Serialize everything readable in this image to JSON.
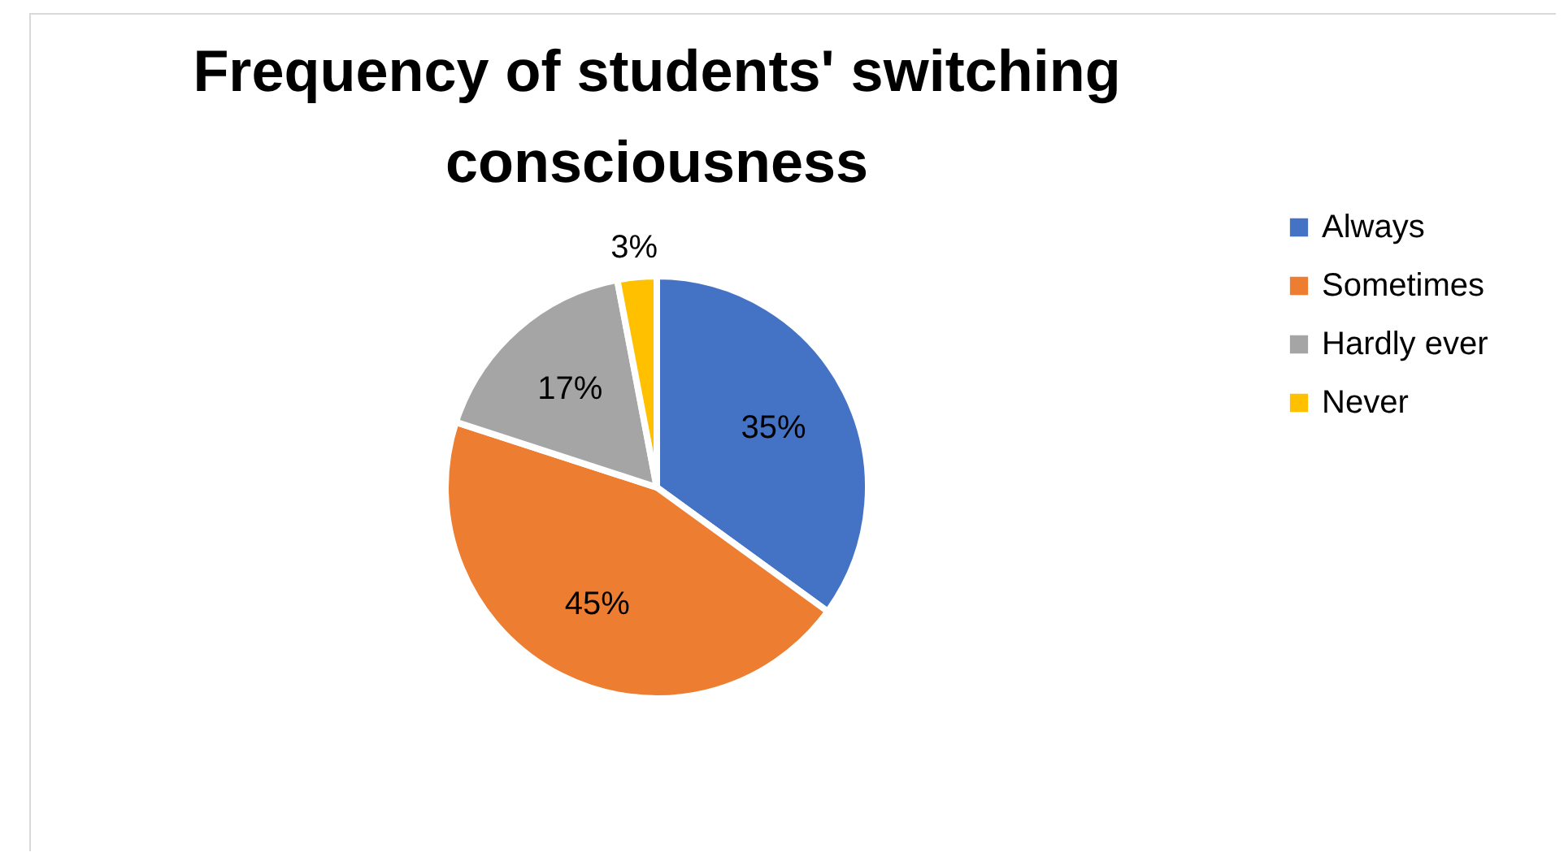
{
  "chart_data": {
    "type": "pie",
    "title": "Frequency of students' switching consciousness",
    "categories": [
      "Always",
      "Sometimes",
      "Hardly ever",
      "Never"
    ],
    "values": [
      35,
      45,
      17,
      3
    ],
    "value_labels": [
      "35%",
      "45%",
      "17%",
      "3%"
    ],
    "colors": [
      "#4472c4",
      "#ed7d31",
      "#a5a5a5",
      "#ffc000"
    ],
    "legend": "right"
  }
}
